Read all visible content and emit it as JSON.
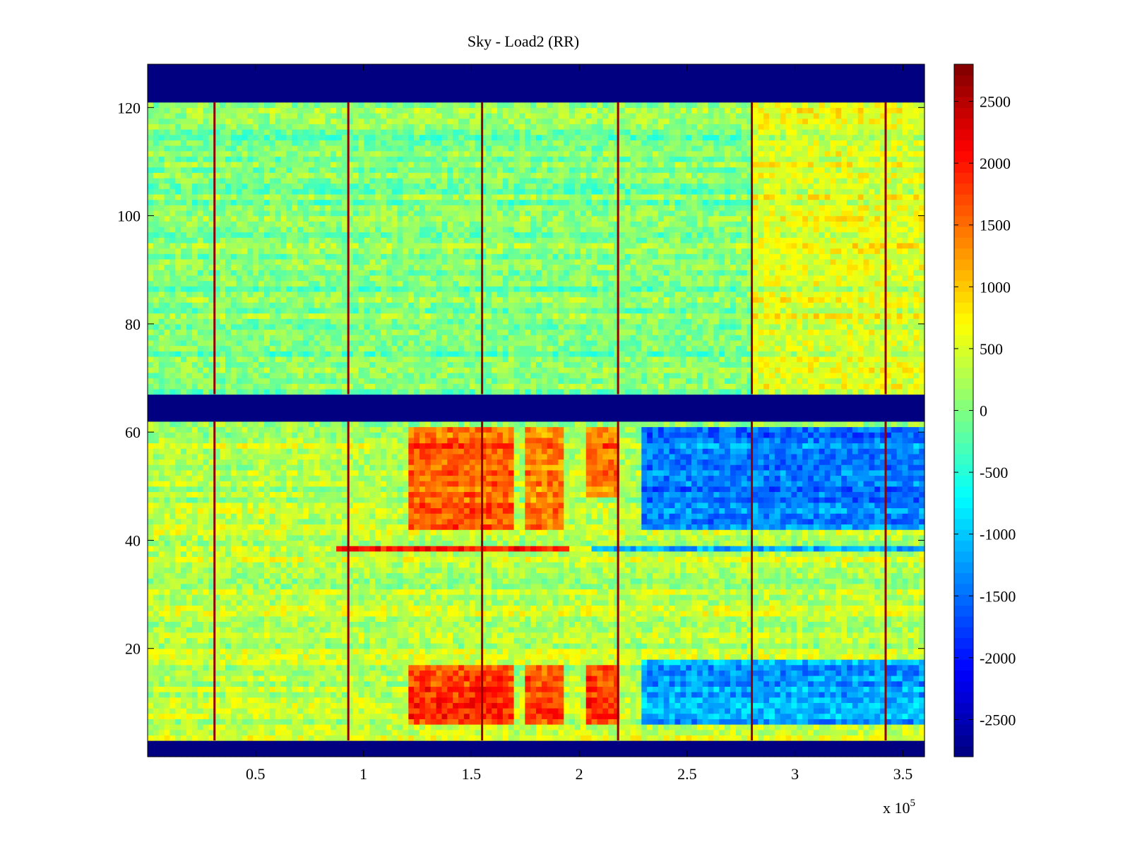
{
  "chart_data": {
    "type": "heatmap",
    "title": "Sky - Load2 (RR)",
    "xlabel": "",
    "ylabel": "",
    "x_multiplier_label": "x 10",
    "x_multiplier_exponent": "5",
    "xlim": [
      0,
      3.6
    ],
    "ylim": [
      0,
      128
    ],
    "xticks": [
      0.5,
      1,
      1.5,
      2,
      2.5,
      3,
      3.5
    ],
    "xtick_labels": [
      "0.5",
      "1",
      "1.5",
      "2",
      "2.5",
      "3",
      "3.5"
    ],
    "yticks": [
      20,
      40,
      60,
      80,
      100,
      120
    ],
    "ytick_labels": [
      "20",
      "40",
      "60",
      "80",
      "100",
      "120"
    ],
    "colormap": "jet",
    "clim": [
      -2800,
      2800
    ],
    "colorbar_ticks": [
      2500,
      2000,
      1500,
      1000,
      500,
      0,
      -500,
      -1000,
      -1500,
      -2000,
      -2500
    ],
    "colorbar_tick_labels": [
      "2500",
      "2000",
      "1500",
      "1000",
      "500",
      "0",
      "-500",
      "-1000",
      "-1500",
      "-2000",
      "-2500"
    ],
    "masked_row_bands": [
      [
        0,
        3
      ],
      [
        62,
        67
      ],
      [
        121,
        128
      ]
    ],
    "masked_value": -2800,
    "spike_columns_x": [
      0.31,
      0.93,
      1.55,
      2.18,
      2.8,
      3.42
    ],
    "spike_value": 2700,
    "regions": [
      {
        "x": [
          0,
          3.6
        ],
        "y": [
          67,
          121
        ],
        "value": 0,
        "note": "upper band, near zero"
      },
      {
        "x": [
          2.8,
          3.6
        ],
        "y": [
          67,
          121
        ],
        "value": 500,
        "note": "upper band, right side slightly warm"
      },
      {
        "x": [
          0,
          3.6
        ],
        "y": [
          3,
          62
        ],
        "value": 300,
        "note": "lower band baseline"
      },
      {
        "x": [
          1.2,
          1.7
        ],
        "y": [
          42,
          61
        ],
        "value": 1600
      },
      {
        "x": [
          1.75,
          1.93
        ],
        "y": [
          42,
          61
        ],
        "value": 1400
      },
      {
        "x": [
          2.02,
          2.18
        ],
        "y": [
          48,
          61
        ],
        "value": 1500
      },
      {
        "x": [
          1.2,
          1.7
        ],
        "y": [
          6,
          17
        ],
        "value": 1800
      },
      {
        "x": [
          1.75,
          1.93
        ],
        "y": [
          6,
          17
        ],
        "value": 1700
      },
      {
        "x": [
          2.02,
          2.18
        ],
        "y": [
          6,
          17
        ],
        "value": 1800
      },
      {
        "x": [
          2.3,
          3.6
        ],
        "y": [
          42,
          61
        ],
        "value": -1400
      },
      {
        "x": [
          2.3,
          3.6
        ],
        "y": [
          6,
          18
        ],
        "value": -1200
      },
      {
        "x": [
          0.88,
          1.95
        ],
        "y": [
          38,
          39.5
        ],
        "value": 1900,
        "note": "horizontal line at ~38"
      },
      {
        "x": [
          2.05,
          3.6
        ],
        "y": [
          38,
          39.5
        ],
        "value": -1300,
        "note": "horizontal line at ~38"
      }
    ]
  }
}
